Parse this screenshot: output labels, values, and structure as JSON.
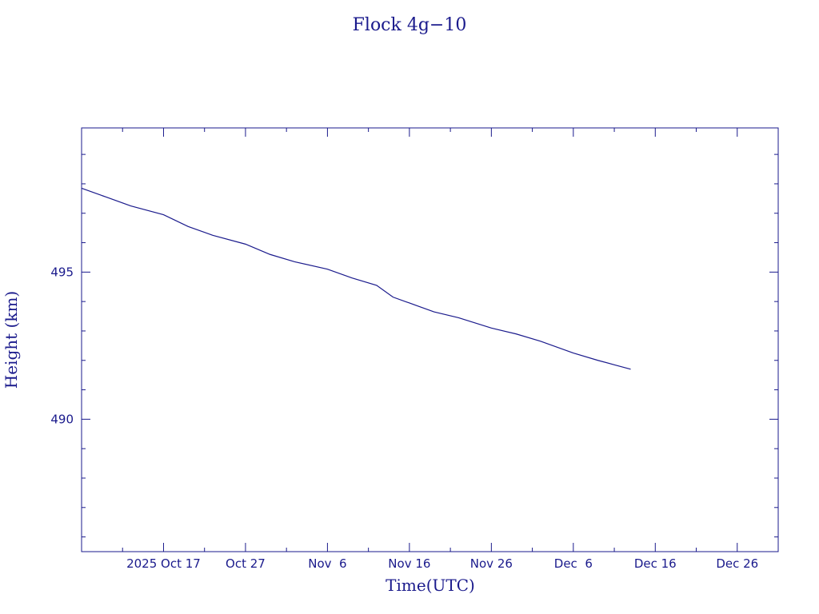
{
  "chart_data": {
    "type": "line",
    "title": "Flock 4g−10",
    "xlabel": "Time(UTC)",
    "ylabel": "Height (km)",
    "x_domain": [
      "2025-10-07",
      "2025-12-31"
    ],
    "ylim": [
      485.5,
      499.9
    ],
    "x_tick_labels": [
      {
        "date": "2025-10-17",
        "label": "2025 Oct 17"
      },
      {
        "date": "2025-10-27",
        "label": "Oct 27"
      },
      {
        "date": "2025-11-06",
        "label": "Nov  6"
      },
      {
        "date": "2025-11-16",
        "label": "Nov 16"
      },
      {
        "date": "2025-11-26",
        "label": "Nov 26"
      },
      {
        "date": "2025-12-06",
        "label": "Dec  6"
      },
      {
        "date": "2025-12-16",
        "label": "Dec 16"
      },
      {
        "date": "2025-12-26",
        "label": "Dec 26"
      }
    ],
    "y_tick_labels": [
      {
        "value": 495,
        "label": "495"
      },
      {
        "value": 490,
        "label": "490"
      }
    ],
    "y_minor_step": 1,
    "x_minor_step_days": 5,
    "line_color": "#1a1a8c",
    "series": [
      {
        "points": [
          [
            "2025-10-07",
            497.85
          ],
          [
            "2025-10-10",
            497.55
          ],
          [
            "2025-10-13",
            497.25
          ],
          [
            "2025-10-17",
            496.95
          ],
          [
            "2025-10-20",
            496.55
          ],
          [
            "2025-10-23",
            496.25
          ],
          [
            "2025-10-27",
            495.95
          ],
          [
            "2025-10-30",
            495.6
          ],
          [
            "2025-11-02",
            495.35
          ],
          [
            "2025-11-06",
            495.1
          ],
          [
            "2025-11-09",
            494.8
          ],
          [
            "2025-11-12",
            494.55
          ],
          [
            "2025-11-14",
            494.15
          ],
          [
            "2025-11-16",
            493.95
          ],
          [
            "2025-11-19",
            493.65
          ],
          [
            "2025-11-22",
            493.45
          ],
          [
            "2025-11-26",
            493.1
          ],
          [
            "2025-11-29",
            492.9
          ],
          [
            "2025-12-02",
            492.65
          ],
          [
            "2025-12-06",
            492.25
          ],
          [
            "2025-12-09",
            492.0
          ],
          [
            "2025-12-11",
            491.85
          ],
          [
            "2025-12-13",
            491.7
          ]
        ]
      }
    ]
  }
}
